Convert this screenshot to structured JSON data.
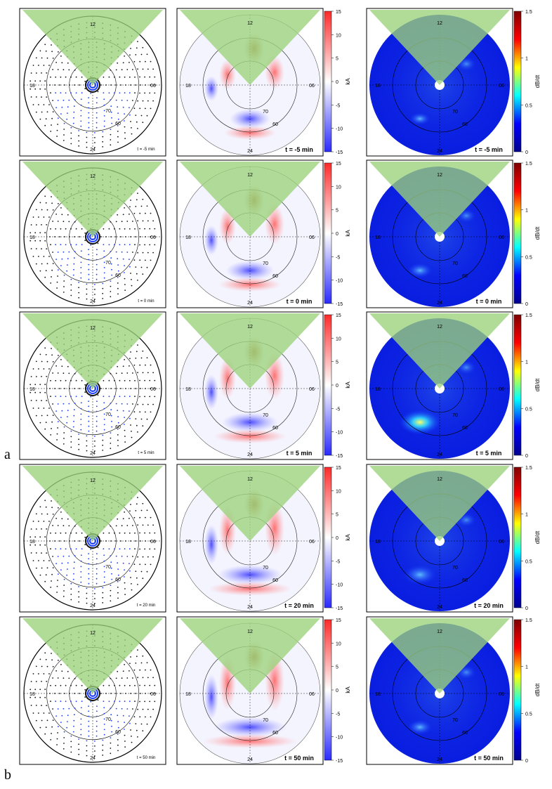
{
  "figure": {
    "panel_labels": [
      "a",
      "b"
    ],
    "rows": [
      {
        "time_label": "t = -5 min"
      },
      {
        "time_label": "t = 0 min"
      },
      {
        "time_label": "t = 5 min"
      },
      {
        "time_label": "t = 20 min"
      },
      {
        "time_label": "t = 50 min"
      }
    ],
    "mlt_labels": {
      "top": "12",
      "bottom": "24",
      "left": "18",
      "right": "06"
    },
    "lat_labels": [
      "70",
      "60"
    ],
    "columns": [
      {
        "kind": "vectors"
      },
      {
        "kind": "current",
        "colorbar": {
          "label": "kA",
          "ticks": [
            "15",
            "10",
            "5",
            "0",
            "-5",
            "-10",
            "-15"
          ],
          "colors": [
            "#2a2aff",
            "#ffffff",
            "#ff2a2a"
          ]
        }
      },
      {
        "kind": "dbdt",
        "colorbar": {
          "label": "dB/dt",
          "ticks": [
            "1.5",
            "1",
            "0.5",
            "0"
          ],
          "colors": [
            "#00008f",
            "#0000ff",
            "#00ffff",
            "#ffff00",
            "#ff0000",
            "#800000"
          ]
        }
      }
    ],
    "colors": {
      "wedge": "#9bd27a",
      "frame": "#000000",
      "vector_black": "#111111",
      "vector_blue": "#1a3cff"
    }
  }
}
